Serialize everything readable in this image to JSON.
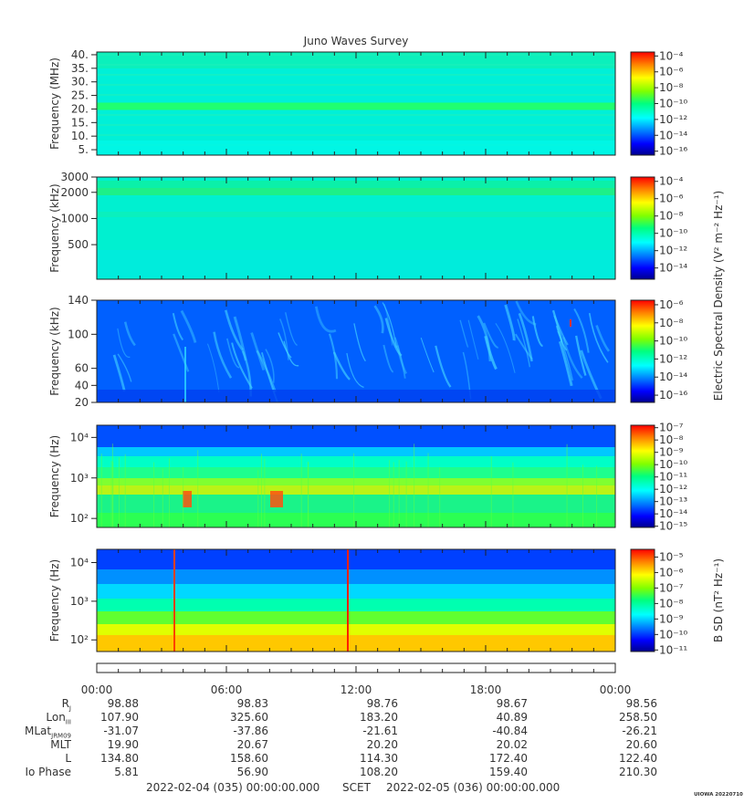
{
  "title": "Juno Waves Survey",
  "watermark": "UIOWA 20220710",
  "chart_data": [
    {
      "type": "heatmap",
      "panel": "hfr-high",
      "ylabel": "Frequency (MHz)",
      "yscale": "linear",
      "ylim": [
        3,
        41
      ],
      "yticks": [
        "5.",
        "10.",
        "15.",
        "20.",
        "25.",
        "30.",
        "35.",
        "40."
      ],
      "ytick_values": [
        5,
        10,
        15,
        20,
        25,
        30,
        35,
        40
      ],
      "colorbar": {
        "ticks": [
          "10⁻⁴",
          "10⁻⁶",
          "10⁻⁸",
          "10⁻¹⁰",
          "10⁻¹²",
          "10⁻¹⁴",
          "10⁻¹⁶"
        ],
        "exponents": [
          -4,
          -6,
          -8,
          -10,
          -12,
          -14,
          -16
        ],
        "range": [
          -3.5,
          -16.5
        ]
      },
      "features": [
        {
          "kind": "band",
          "freq": 21,
          "description": "steady emission line"
        }
      ]
    },
    {
      "type": "heatmap",
      "panel": "hfr-low",
      "ylabel": "Frequency (kHz)",
      "yscale": "log",
      "ylim": [
        200,
        3000
      ],
      "yticks": [
        "3000",
        "2000",
        "1000",
        "500"
      ],
      "ytick_values": [
        3000,
        2000,
        1000,
        500
      ],
      "colorbar": {
        "ticks": [
          "10⁻⁴",
          "10⁻⁶",
          "10⁻⁸",
          "10⁻¹⁰",
          "10⁻¹²",
          "10⁻¹⁴"
        ],
        "exponents": [
          -4,
          -6,
          -8,
          -10,
          -12,
          -14
        ],
        "range": [
          -3.5,
          -15.3
        ]
      }
    },
    {
      "type": "heatmap",
      "panel": "lfr-high",
      "ylabel": "Frequency (kHz)",
      "yscale": "linear",
      "ylim": [
        20,
        140
      ],
      "yticks": [
        "140",
        "100",
        "60",
        "40",
        "20"
      ],
      "ytick_values": [
        140,
        100,
        60,
        40,
        20
      ],
      "colorbar": {
        "ticks": [
          "10⁻⁶",
          "10⁻⁸",
          "10⁻¹⁰",
          "10⁻¹²",
          "10⁻¹⁴",
          "10⁻¹⁶"
        ],
        "exponents": [
          -6,
          -8,
          -10,
          -12,
          -14,
          -16
        ],
        "range": [
          -5.5,
          -16.8
        ]
      }
    },
    {
      "type": "heatmap",
      "panel": "lfr-low",
      "ylabel": "Frequency (Hz)",
      "yscale": "log",
      "ylim": [
        60,
        20000
      ],
      "yticks": [
        "10⁴",
        "10³",
        "10²"
      ],
      "ytick_values": [
        10000,
        1000,
        100
      ],
      "colorbar": {
        "ticks": [
          "10⁻⁷",
          "10⁻⁸",
          "10⁻⁹",
          "10⁻¹⁰",
          "10⁻¹¹",
          "10⁻¹²",
          "10⁻¹³",
          "10⁻¹⁴",
          "10⁻¹⁵"
        ],
        "exponents": [
          -7,
          -8,
          -9,
          -10,
          -11,
          -12,
          -13,
          -14,
          -15
        ],
        "range": [
          -6.8,
          -15.1
        ]
      }
    },
    {
      "type": "heatmap",
      "panel": "magnetic",
      "ylabel": "Frequency (Hz)",
      "yscale": "log",
      "ylim": [
        50,
        22000
      ],
      "yticks": [
        "10⁴",
        "10³",
        "10²"
      ],
      "ytick_values": [
        10000,
        1000,
        100
      ],
      "colorbar": {
        "ticks": [
          "10⁻⁵",
          "10⁻⁶",
          "10⁻⁷",
          "10⁻⁸",
          "10⁻⁹",
          "10⁻¹⁰",
          "10⁻¹¹"
        ],
        "exponents": [
          -5,
          -6,
          -7,
          -8,
          -9,
          -10,
          -11
        ],
        "range": [
          -4.5,
          -11.1
        ]
      }
    }
  ],
  "colorbar_labels": {
    "electric": "Electric Spectral Density (V² m⁻² Hz⁻¹)",
    "magnetic": "B SD (nT² Hz⁻¹)"
  },
  "time_axis": {
    "labels": [
      "00:00",
      "06:00",
      "12:00",
      "18:00",
      "00:00"
    ],
    "start": "2022-02-04 (035) 00:00:00.000",
    "middle": "SCET",
    "end": "2022-02-05 (036) 00:00:00.000"
  },
  "ephemeris": [
    {
      "label": "R",
      "sub": "J",
      "values": [
        "98.88",
        "98.83",
        "98.76",
        "98.67",
        "98.56"
      ]
    },
    {
      "label": "Lon",
      "sub": "III",
      "values": [
        "107.90",
        "325.60",
        "183.20",
        "40.89",
        "258.50"
      ]
    },
    {
      "label": "MLat",
      "sub": "JRM09",
      "values": [
        "-31.07",
        "-37.86",
        "-21.61",
        "-40.84",
        "-26.21"
      ]
    },
    {
      "label": "MLT",
      "sub": "",
      "values": [
        "19.90",
        "20.67",
        "20.20",
        "20.02",
        "20.60"
      ]
    },
    {
      "label": "L",
      "sub": "",
      "values": [
        "134.80",
        "158.60",
        "114.30",
        "172.40",
        "122.40"
      ]
    },
    {
      "label": "Io Phase",
      "sub": "",
      "values": [
        "5.81",
        "56.90",
        "108.20",
        "159.40",
        "210.30"
      ]
    }
  ]
}
